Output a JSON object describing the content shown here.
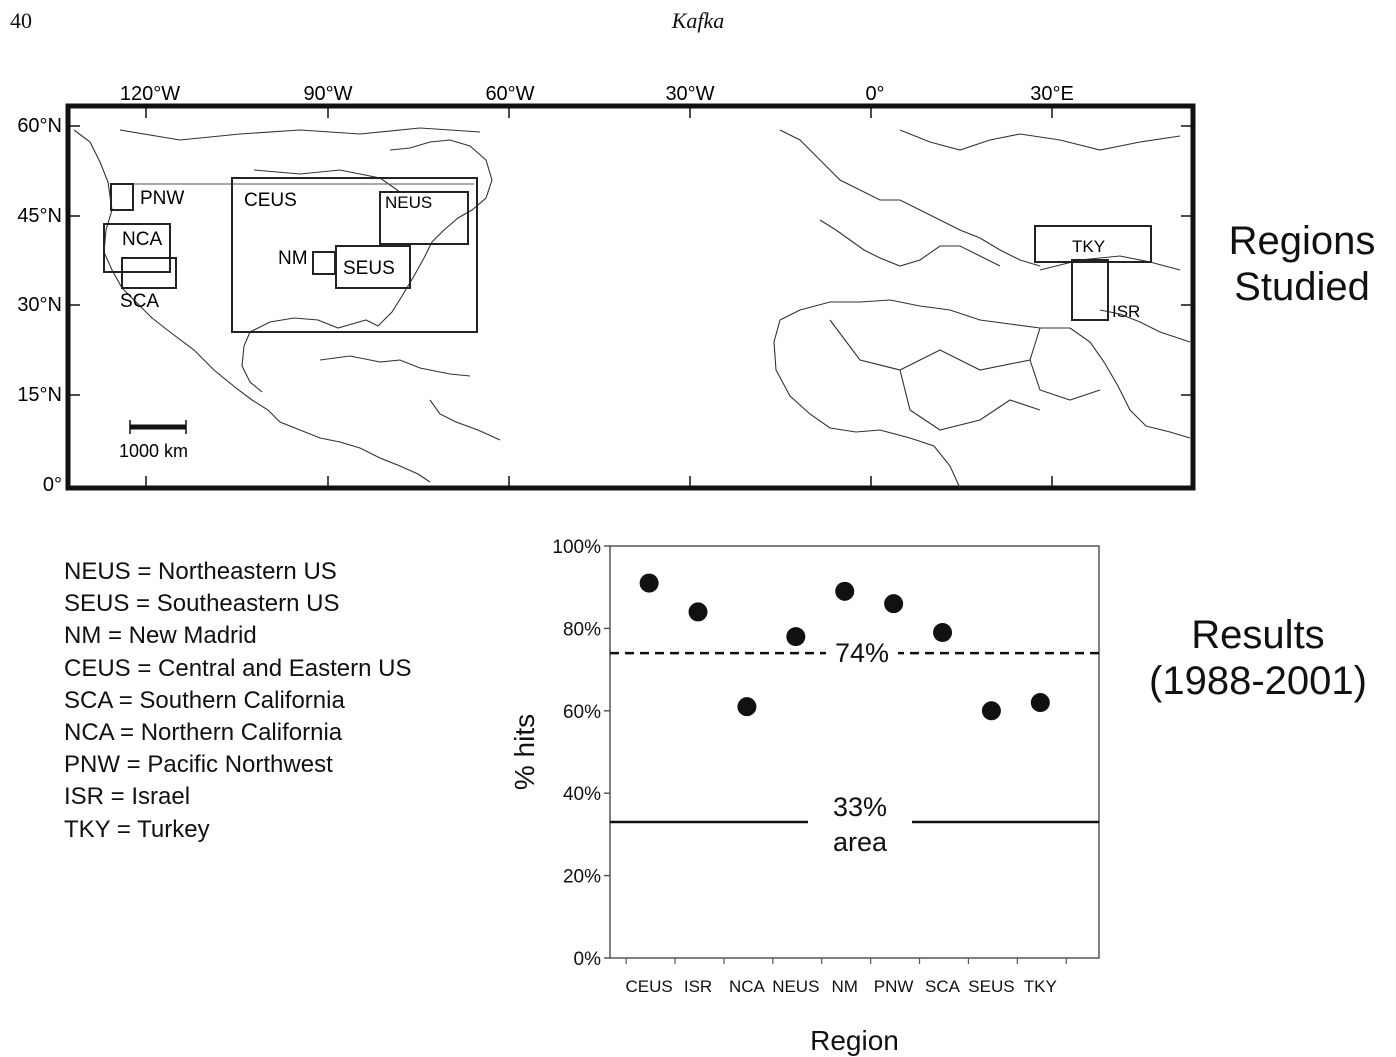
{
  "page": {
    "number": "40",
    "running_head": "Kafka"
  },
  "map": {
    "top_ticks": [
      "120°W",
      "90°W",
      "60°W",
      "30°W",
      "0°",
      "30°E"
    ],
    "left_ticks": [
      "60°N",
      "45°N",
      "30°N",
      "15°N",
      "0°"
    ],
    "scale_label": "1000 km",
    "regions": [
      "PNW",
      "NCA",
      "SCA",
      "CEUS",
      "NEUS",
      "NM",
      "SEUS",
      "TKY",
      "ISR"
    ],
    "side_title": [
      "Regions",
      "Studied"
    ]
  },
  "abbreviations": [
    "NEUS = Northeastern US",
    "SEUS = Southeastern US",
    "NM = New Madrid",
    "CEUS = Central and Eastern US",
    "SCA = Southern California",
    "NCA = Northern California",
    "PNW = Pacific Northwest",
    "ISR = Israel",
    "TKY = Turkey"
  ],
  "results_title": [
    "Results",
    "(1988-2001)"
  ],
  "chart_data": {
    "type": "scatter",
    "categories": [
      "CEUS",
      "ISR",
      "NCA",
      "NEUS",
      "NM",
      "PNW",
      "SCA",
      "SEUS",
      "TKY"
    ],
    "values": [
      91,
      84,
      61,
      78,
      89,
      86,
      79,
      60,
      62
    ],
    "ylabel": "% hits",
    "xlabel": "Region",
    "ylim": [
      0,
      100
    ],
    "yticks": [
      "0%",
      "20%",
      "40%",
      "60%",
      "80%",
      "100%"
    ],
    "reference_lines": [
      {
        "value": 74,
        "style": "dashed",
        "label": "74%"
      },
      {
        "value": 33,
        "style": "solid",
        "label_line1": "33%",
        "label_line2": "area"
      }
    ],
    "grid": false,
    "marker_color": "#111111"
  }
}
